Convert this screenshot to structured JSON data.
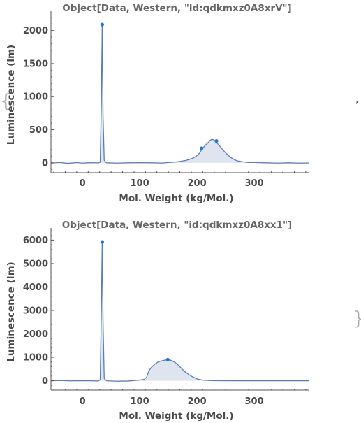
{
  "list_open_bracket": "{",
  "list_close_bracket": "}",
  "list_separator": ",",
  "chart_data": [
    {
      "type": "area",
      "title": "Object[Data, Western, \"id:qdkmxz0A8xrV\"]",
      "xlabel": "Mol. Weight  (kg/Mol.)",
      "ylabel": "Luminescence  (lm)",
      "xlim": [
        -55,
        395
      ],
      "ylim": [
        -150,
        2250
      ],
      "xticks": [
        0,
        100,
        200,
        300
      ],
      "yticks": [
        0,
        500,
        1000,
        1500,
        2000
      ],
      "line_color": "#5b7db5",
      "fill_color": "#dfe5ef",
      "marker_color": "#1f77d8",
      "series": [
        {
          "x": [
            -55,
            -40,
            -25,
            -10,
            0,
            10,
            20,
            28,
            31,
            33,
            34.5,
            36,
            38,
            42,
            60,
            80,
            100,
            120,
            140,
            150,
            160,
            170,
            180,
            190,
            195,
            200,
            205,
            208,
            212,
            216,
            220,
            223,
            226,
            229,
            232,
            235,
            240,
            245,
            250,
            255,
            260,
            265,
            270,
            280,
            290,
            300,
            320,
            340,
            360,
            380,
            395
          ],
          "y": [
            -5,
            5,
            -8,
            3,
            -5,
            0,
            2,
            -2,
            10,
            900,
            2090,
            700,
            40,
            0,
            -5,
            0,
            2,
            0,
            -3,
            5,
            10,
            20,
            35,
            60,
            80,
            110,
            150,
            200,
            240,
            280,
            310,
            340,
            355,
            350,
            330,
            300,
            250,
            200,
            150,
            110,
            75,
            50,
            30,
            15,
            5,
            5,
            0,
            -5,
            0,
            -5,
            -2
          ]
        }
      ],
      "markers": [
        {
          "x": 34.5,
          "y": 2090
        },
        {
          "x": 208,
          "y": 220
        },
        {
          "x": 234,
          "y": 330
        }
      ]
    },
    {
      "type": "area",
      "title": "Object[Data, Western, \"id:qdkmxz0A8xx1\"]",
      "xlabel": "Mol. Weight  (kg/Mol.)",
      "ylabel": "Luminescence  (lm)",
      "xlim": [
        -55,
        395
      ],
      "ylim": [
        -400,
        6400
      ],
      "xticks": [
        0,
        100,
        200,
        300
      ],
      "yticks": [
        0,
        1000,
        2000,
        3000,
        4000,
        5000,
        6000
      ],
      "line_color": "#5b7db5",
      "fill_color": "#dfe5ef",
      "marker_color": "#1f77d8",
      "series": [
        {
          "x": [
            -55,
            -40,
            -20,
            0,
            15,
            28,
            31,
            33,
            34.5,
            36,
            38,
            42,
            60,
            80,
            100,
            108,
            112,
            116,
            120,
            126,
            132,
            138,
            144,
            150,
            156,
            162,
            168,
            174,
            180,
            190,
            200,
            210,
            230,
            260,
            300,
            340,
            395
          ],
          "y": [
            0,
            10,
            -5,
            5,
            0,
            -10,
            50,
            3000,
            5920,
            2500,
            100,
            0,
            -20,
            -10,
            30,
            60,
            150,
            420,
            560,
            700,
            800,
            850,
            880,
            900,
            860,
            780,
            650,
            500,
            360,
            200,
            80,
            25,
            5,
            0,
            0,
            0,
            0
          ]
        }
      ],
      "markers": [
        {
          "x": 34.5,
          "y": 5920
        },
        {
          "x": 149,
          "y": 900
        }
      ]
    }
  ]
}
